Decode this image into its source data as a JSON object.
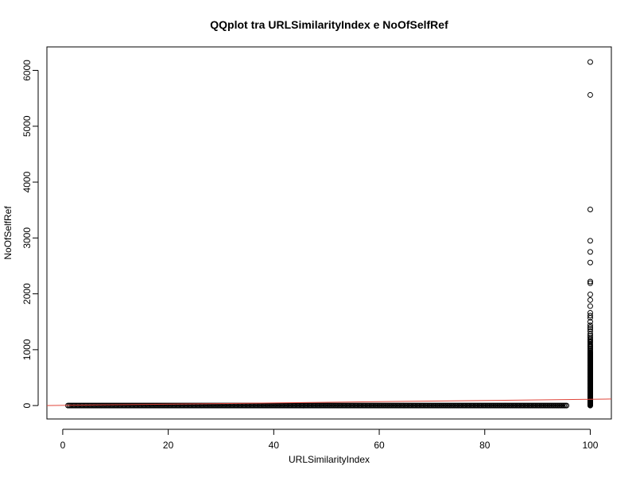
{
  "chart_data": {
    "type": "scatter",
    "title": "QQplot tra URLSimilarityIndex e NoOfSelfRef",
    "xlabel": "URLSimilarityIndex",
    "ylabel": "NoOfSelfRef",
    "xlim": [
      -3,
      104
    ],
    "ylim": [
      -240,
      6420
    ],
    "xticks": [
      0,
      20,
      40,
      60,
      80,
      100
    ],
    "yticks": [
      0,
      1000,
      2000,
      3000,
      4000,
      5000,
      6000
    ],
    "points_low": {
      "x_range": [
        1,
        95.5
      ],
      "y": 0
    },
    "points_at_100": {
      "x": 100,
      "y": [
        6150,
        5560,
        3510,
        2950,
        2750,
        2560,
        2220,
        2190,
        1990,
        1890,
        1780,
        1660,
        1610,
        1570,
        1500,
        1440,
        1400,
        1370,
        1330,
        1280,
        1250,
        1220,
        1190,
        1170,
        1150,
        1130,
        1100,
        1080,
        1060,
        1040,
        1020,
        1000,
        980
      ]
    },
    "dense_band_at_100": [
      0,
      960
    ],
    "reference_line": {
      "color": "#e0453a",
      "points": [
        [
          -3,
          1
        ],
        [
          104,
          117
        ]
      ]
    }
  }
}
